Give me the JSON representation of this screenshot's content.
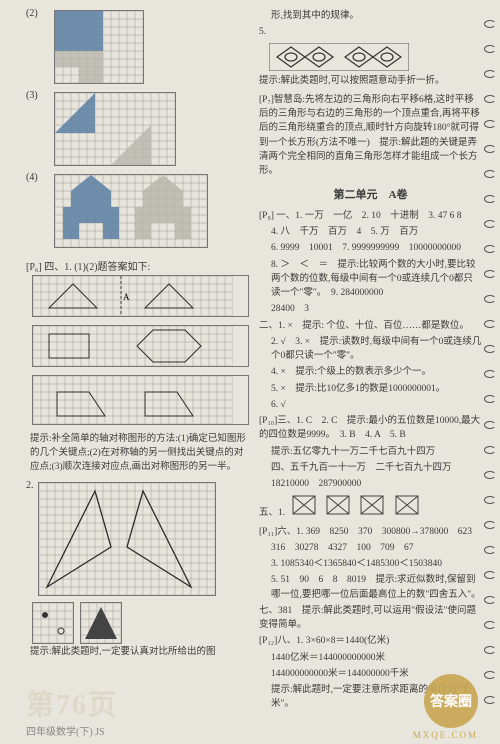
{
  "grid": {
    "cell": 8,
    "stroke": "#9a9a92",
    "shape_stroke": "#2a2a2a",
    "fill_blue": "#5b7fa3",
    "fill_gray": "#b8b6ac"
  },
  "left": {
    "items": {
      "i2_label": "(2)",
      "i3_label": "(3)",
      "i4_label": "(4)"
    },
    "section4": "[P₆] 四、1. (1)(2)题答案如下:",
    "hint_axis": "提示:补全简单的轴对称图形的方法:(1)确定已知图形的几个关键点;(2)在对称轴的另一侧找出关键点的对应点;(3)顺次连接对应点,画出对称图形的另一半。",
    "i2_row_label": "2.",
    "hint_bottom": "提示:解此类题时,一定要认真对比所给出的图"
  },
  "right": {
    "top_cont": "形,找到其中的规律。",
    "i5_label": "5.",
    "hint5": "提示:解此类题时,可以按照题意动手折一折。",
    "zhihui": "[P₇]智慧岛:先将左边的三角形向右平移6格,这时平移后的三角形与右边的三角形的一个顶点重合,再将平移后的三角形绕重合的顶点,顺时针方向旋转180°就可得到一个长方形(方法不唯一)　提示:解此题的关键是弄清两个完全相同的直角三角形怎样才能组成一个长方形。",
    "unit_title": "第二单元　A卷",
    "p9_1_head": "[P₉] 一、1. 一万　一亿　2. 10　十进制　3. 47  6  8",
    "p9_1_4": "4. 八　千万　百万　4　5. 万　百万",
    "p9_1_6": "6. 9999　10001　7. 9999999999　10000000000",
    "p9_1_8": "8. ＞　＜　＝　提示:比较两个数的大小时,要比较两个数的位数,每级中间有一个0或连续几个0都只读一个\"零\"。　9. 284000000",
    "p9_1_8c": "28400　3",
    "p9_2_head": "二、1. ×　提示: 个位、十位、百位……都是数位。",
    "p9_2_2": "2. √　3. ×　提示:读数时,每级中间有一个0或连续几个0都只读一个\"零\"。",
    "p9_2_4": "4. ×　提示:个级上的数表示多少个一。",
    "p9_2_5": "5. ×　提示:比10亿多1的数是1000000001。",
    "p9_2_6": "6. √",
    "p10_3": "[P₁₀]三、1. C　2. C　提示:最小的五位数是10000,最大的四位数是9999。　3. B　4. A　5. B",
    "p10_3b": "提示:五亿零九十一万二千七百九十四万",
    "p10_4": "四、五千九百一十一万　二千七百九十四万",
    "p10_4b": "18210000　287900000",
    "p10_5": "五、1.",
    "p11_6": "[P₁₁]六、1. 369　8250　370　300800→378000　623",
    "p11_6b": "316　30278　4327　100　709　67",
    "p11_6c": "3. 1085340＜1365840＜1485300＜1503840",
    "p11_6d": "5. 51　90　6　8　8019　提示:求近似数时,保留到哪一位,要把哪一位后面最高位上的数\"四舍五入\"。",
    "p11_7": "七、381　提示:解此类题时,可以运用\"假设法\"使问题变得简单。",
    "p12_8": "[P₁₂]八、1. 3×60×8＝1440(亿米)",
    "p12_8b": "1440亿米＝144000000000米",
    "p12_8c": "144000000000米＝144000000千米",
    "p12_8d": "提示:解此题时,一定要注意所求距离的单位为\"千米\"。"
  },
  "footer": {
    "page_word_left": "第",
    "page_word_right": "页",
    "grade": "四年级数学(下) JS"
  },
  "watermark": {
    "text": "答案圈",
    "sub": "MXQE.COM"
  }
}
